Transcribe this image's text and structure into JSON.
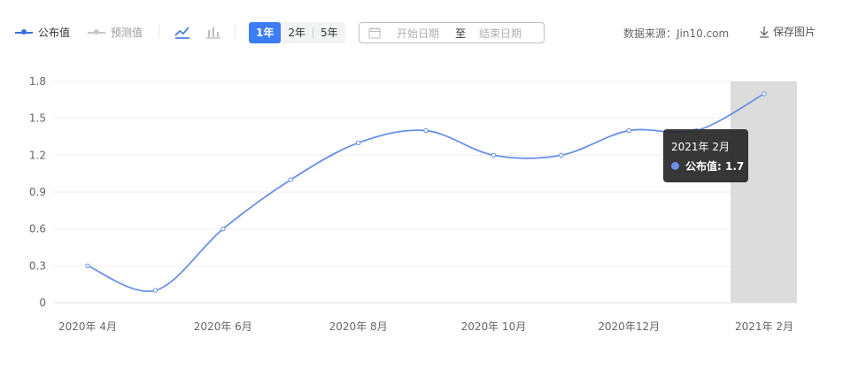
{
  "legend": {
    "published": {
      "label": "公布值",
      "color": "#5b7ee8"
    },
    "forecast": {
      "label": "预测值",
      "color": "#c8c8c8"
    }
  },
  "chart_type_icons": [
    "line-chart-icon",
    "bar-chart-icon"
  ],
  "range_buttons": [
    "1年",
    "2年",
    "5年"
  ],
  "range_selected": "1年",
  "date_range": {
    "start_placeholder": "开始日期",
    "separator": "至",
    "end_placeholder": "结束日期"
  },
  "source": "数据来源：Jin10.com",
  "save_label": "保存图片",
  "tooltip": {
    "title": "2021年 2月",
    "label": "公布值: 1.7"
  },
  "colors": {
    "accent": "#3c7cf4",
    "line": "#6b8fe6",
    "highlight_band": "#dcdcdc"
  },
  "chart_data": {
    "type": "line",
    "x": [
      "2020年 4月",
      "2020年 5月",
      "2020年 6月",
      "2020年 7月",
      "2020年 8月",
      "2020年 9月",
      "2020年 10月",
      "2020年 11月",
      "2020年12月",
      "2021年 1月",
      "2021年 2月"
    ],
    "xtick_labels": [
      "2020年 4月",
      "2020年 6月",
      "2020年 8月",
      "2020年 10月",
      "2020年12月",
      "2021年 2月"
    ],
    "series": [
      {
        "name": "公布值",
        "values": [
          0.3,
          0.1,
          0.6,
          1.0,
          1.3,
          1.4,
          1.2,
          1.2,
          1.4,
          1.4,
          1.7
        ]
      }
    ],
    "ylim": [
      0,
      1.8
    ],
    "yticks": [
      0,
      0.3,
      0.6,
      0.9,
      1.2,
      1.5,
      1.8
    ],
    "ytick_labels": [
      "0",
      "0.3",
      "0.6",
      "0.9",
      "1.2",
      "1.5",
      "1.8"
    ],
    "highlighted": "2021年 2月",
    "grid": true,
    "smooth": true
  }
}
